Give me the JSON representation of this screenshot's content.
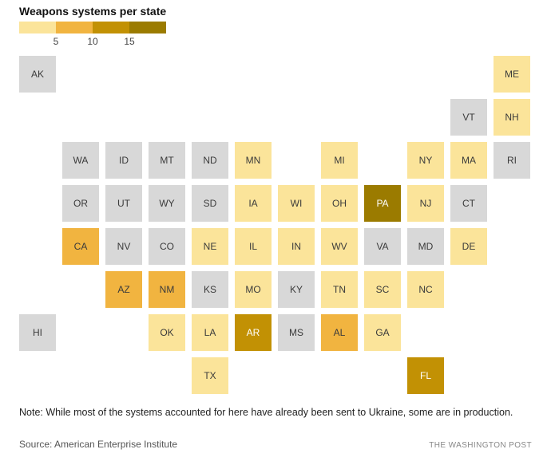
{
  "title": "Weapons systems per state",
  "palette": {
    "none": "#d8d8d8",
    "levels": [
      "#fbe49a",
      "#f1b440",
      "#c29104",
      "#9b7b00"
    ],
    "tile_text_dark": "#3b3b3b",
    "tile_text_light": "#ffffff"
  },
  "chart_data": {
    "type": "heatmap",
    "title": "Weapons systems per state",
    "legend_position": "top-left",
    "colorscale_ticks": [
      5,
      10,
      15
    ],
    "level_descriptions": [
      "none shown (gray)",
      "up to 5",
      "5-10",
      "10-15",
      "more than 15"
    ],
    "states": [
      {
        "abbr": "AK",
        "row": 0,
        "col": 0,
        "level": 0
      },
      {
        "abbr": "ME",
        "row": 0,
        "col": 11,
        "level": 1
      },
      {
        "abbr": "VT",
        "row": 1,
        "col": 10,
        "level": 0
      },
      {
        "abbr": "NH",
        "row": 1,
        "col": 11,
        "level": 1
      },
      {
        "abbr": "WA",
        "row": 2,
        "col": 1,
        "level": 0
      },
      {
        "abbr": "ID",
        "row": 2,
        "col": 2,
        "level": 0
      },
      {
        "abbr": "MT",
        "row": 2,
        "col": 3,
        "level": 0
      },
      {
        "abbr": "ND",
        "row": 2,
        "col": 4,
        "level": 0
      },
      {
        "abbr": "MN",
        "row": 2,
        "col": 5,
        "level": 1
      },
      {
        "abbr": "MI",
        "row": 2,
        "col": 7,
        "level": 1
      },
      {
        "abbr": "NY",
        "row": 2,
        "col": 9,
        "level": 1
      },
      {
        "abbr": "MA",
        "row": 2,
        "col": 10,
        "level": 1
      },
      {
        "abbr": "RI",
        "row": 2,
        "col": 11,
        "level": 0
      },
      {
        "abbr": "OR",
        "row": 3,
        "col": 1,
        "level": 0
      },
      {
        "abbr": "UT",
        "row": 3,
        "col": 2,
        "level": 0
      },
      {
        "abbr": "WY",
        "row": 3,
        "col": 3,
        "level": 0
      },
      {
        "abbr": "SD",
        "row": 3,
        "col": 4,
        "level": 0
      },
      {
        "abbr": "IA",
        "row": 3,
        "col": 5,
        "level": 1
      },
      {
        "abbr": "WI",
        "row": 3,
        "col": 6,
        "level": 1
      },
      {
        "abbr": "OH",
        "row": 3,
        "col": 7,
        "level": 1
      },
      {
        "abbr": "PA",
        "row": 3,
        "col": 8,
        "level": 4
      },
      {
        "abbr": "NJ",
        "row": 3,
        "col": 9,
        "level": 1
      },
      {
        "abbr": "CT",
        "row": 3,
        "col": 10,
        "level": 0
      },
      {
        "abbr": "CA",
        "row": 4,
        "col": 1,
        "level": 2
      },
      {
        "abbr": "NV",
        "row": 4,
        "col": 2,
        "level": 0
      },
      {
        "abbr": "CO",
        "row": 4,
        "col": 3,
        "level": 0
      },
      {
        "abbr": "NE",
        "row": 4,
        "col": 4,
        "level": 1
      },
      {
        "abbr": "IL",
        "row": 4,
        "col": 5,
        "level": 1
      },
      {
        "abbr": "IN",
        "row": 4,
        "col": 6,
        "level": 1
      },
      {
        "abbr": "WV",
        "row": 4,
        "col": 7,
        "level": 1
      },
      {
        "abbr": "VA",
        "row": 4,
        "col": 8,
        "level": 0
      },
      {
        "abbr": "MD",
        "row": 4,
        "col": 9,
        "level": 0
      },
      {
        "abbr": "DE",
        "row": 4,
        "col": 10,
        "level": 1
      },
      {
        "abbr": "AZ",
        "row": 5,
        "col": 2,
        "level": 2
      },
      {
        "abbr": "NM",
        "row": 5,
        "col": 3,
        "level": 2
      },
      {
        "abbr": "KS",
        "row": 5,
        "col": 4,
        "level": 0
      },
      {
        "abbr": "MO",
        "row": 5,
        "col": 5,
        "level": 1
      },
      {
        "abbr": "KY",
        "row": 5,
        "col": 6,
        "level": 0
      },
      {
        "abbr": "TN",
        "row": 5,
        "col": 7,
        "level": 1
      },
      {
        "abbr": "SC",
        "row": 5,
        "col": 8,
        "level": 1
      },
      {
        "abbr": "NC",
        "row": 5,
        "col": 9,
        "level": 1
      },
      {
        "abbr": "HI",
        "row": 6,
        "col": 0,
        "level": 0
      },
      {
        "abbr": "OK",
        "row": 6,
        "col": 3,
        "level": 1
      },
      {
        "abbr": "LA",
        "row": 6,
        "col": 4,
        "level": 1
      },
      {
        "abbr": "AR",
        "row": 6,
        "col": 5,
        "level": 3
      },
      {
        "abbr": "MS",
        "row": 6,
        "col": 6,
        "level": 0
      },
      {
        "abbr": "AL",
        "row": 6,
        "col": 7,
        "level": 2
      },
      {
        "abbr": "GA",
        "row": 6,
        "col": 8,
        "level": 1
      },
      {
        "abbr": "TX",
        "row": 7,
        "col": 4,
        "level": 1
      },
      {
        "abbr": "FL",
        "row": 7,
        "col": 9,
        "level": 3
      }
    ]
  },
  "note": "Note: While most of the systems accounted for here have already been sent to Ukraine, some are in production.",
  "source": "Source: American Enterprise Institute",
  "credit": "THE WASHINGTON POST"
}
